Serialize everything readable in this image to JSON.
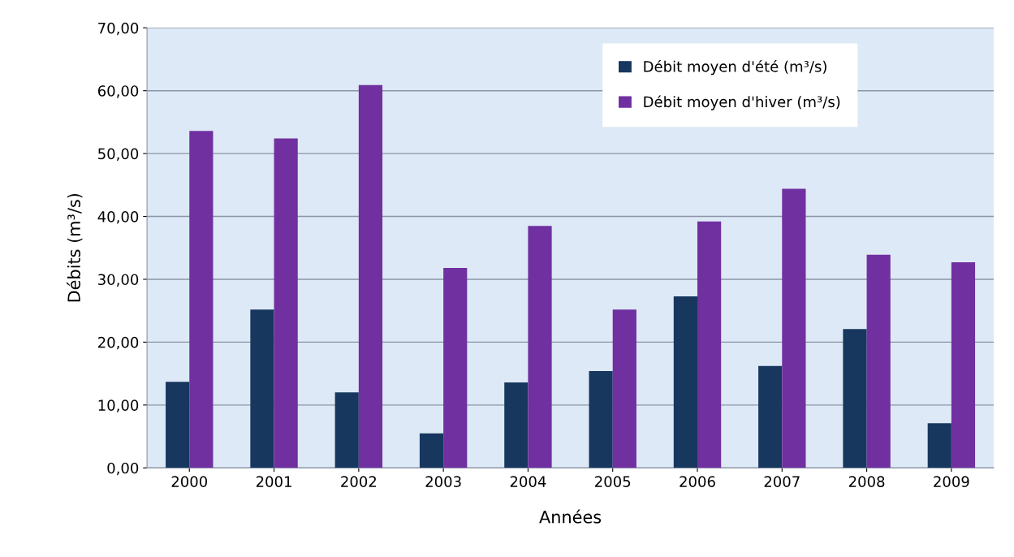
{
  "chart_data": {
    "type": "bar",
    "xlabel": "Années",
    "ylabel": "Débits (m³/s)",
    "categories": [
      "2000",
      "2001",
      "2002",
      "2003",
      "2004",
      "2005",
      "2006",
      "2007",
      "2008",
      "2009"
    ],
    "series": [
      {
        "name": "Débit moyen d'été (m³/s)",
        "color": "#17375e",
        "values": [
          13.7,
          25.2,
          12.0,
          5.5,
          13.6,
          15.4,
          27.3,
          16.2,
          22.1,
          7.1
        ]
      },
      {
        "name": "Débit moyen d'hiver (m³/s)",
        "color": "#7030a0",
        "values": [
          53.6,
          52.4,
          60.9,
          31.8,
          38.5,
          25.2,
          39.2,
          44.4,
          33.9,
          32.7
        ]
      }
    ],
    "ylim": [
      0,
      70
    ],
    "yticks": [
      {
        "value": 0,
        "label": "0,00"
      },
      {
        "value": 10,
        "label": "10,00"
      },
      {
        "value": 20,
        "label": "20,00"
      },
      {
        "value": 30,
        "label": "30,00"
      },
      {
        "value": 40,
        "label": "40,00"
      },
      {
        "value": 50,
        "label": "50,00"
      },
      {
        "value": 60,
        "label": "60,00"
      },
      {
        "value": 70,
        "label": "70,00"
      }
    ],
    "grid": "y",
    "legend": "top"
  }
}
